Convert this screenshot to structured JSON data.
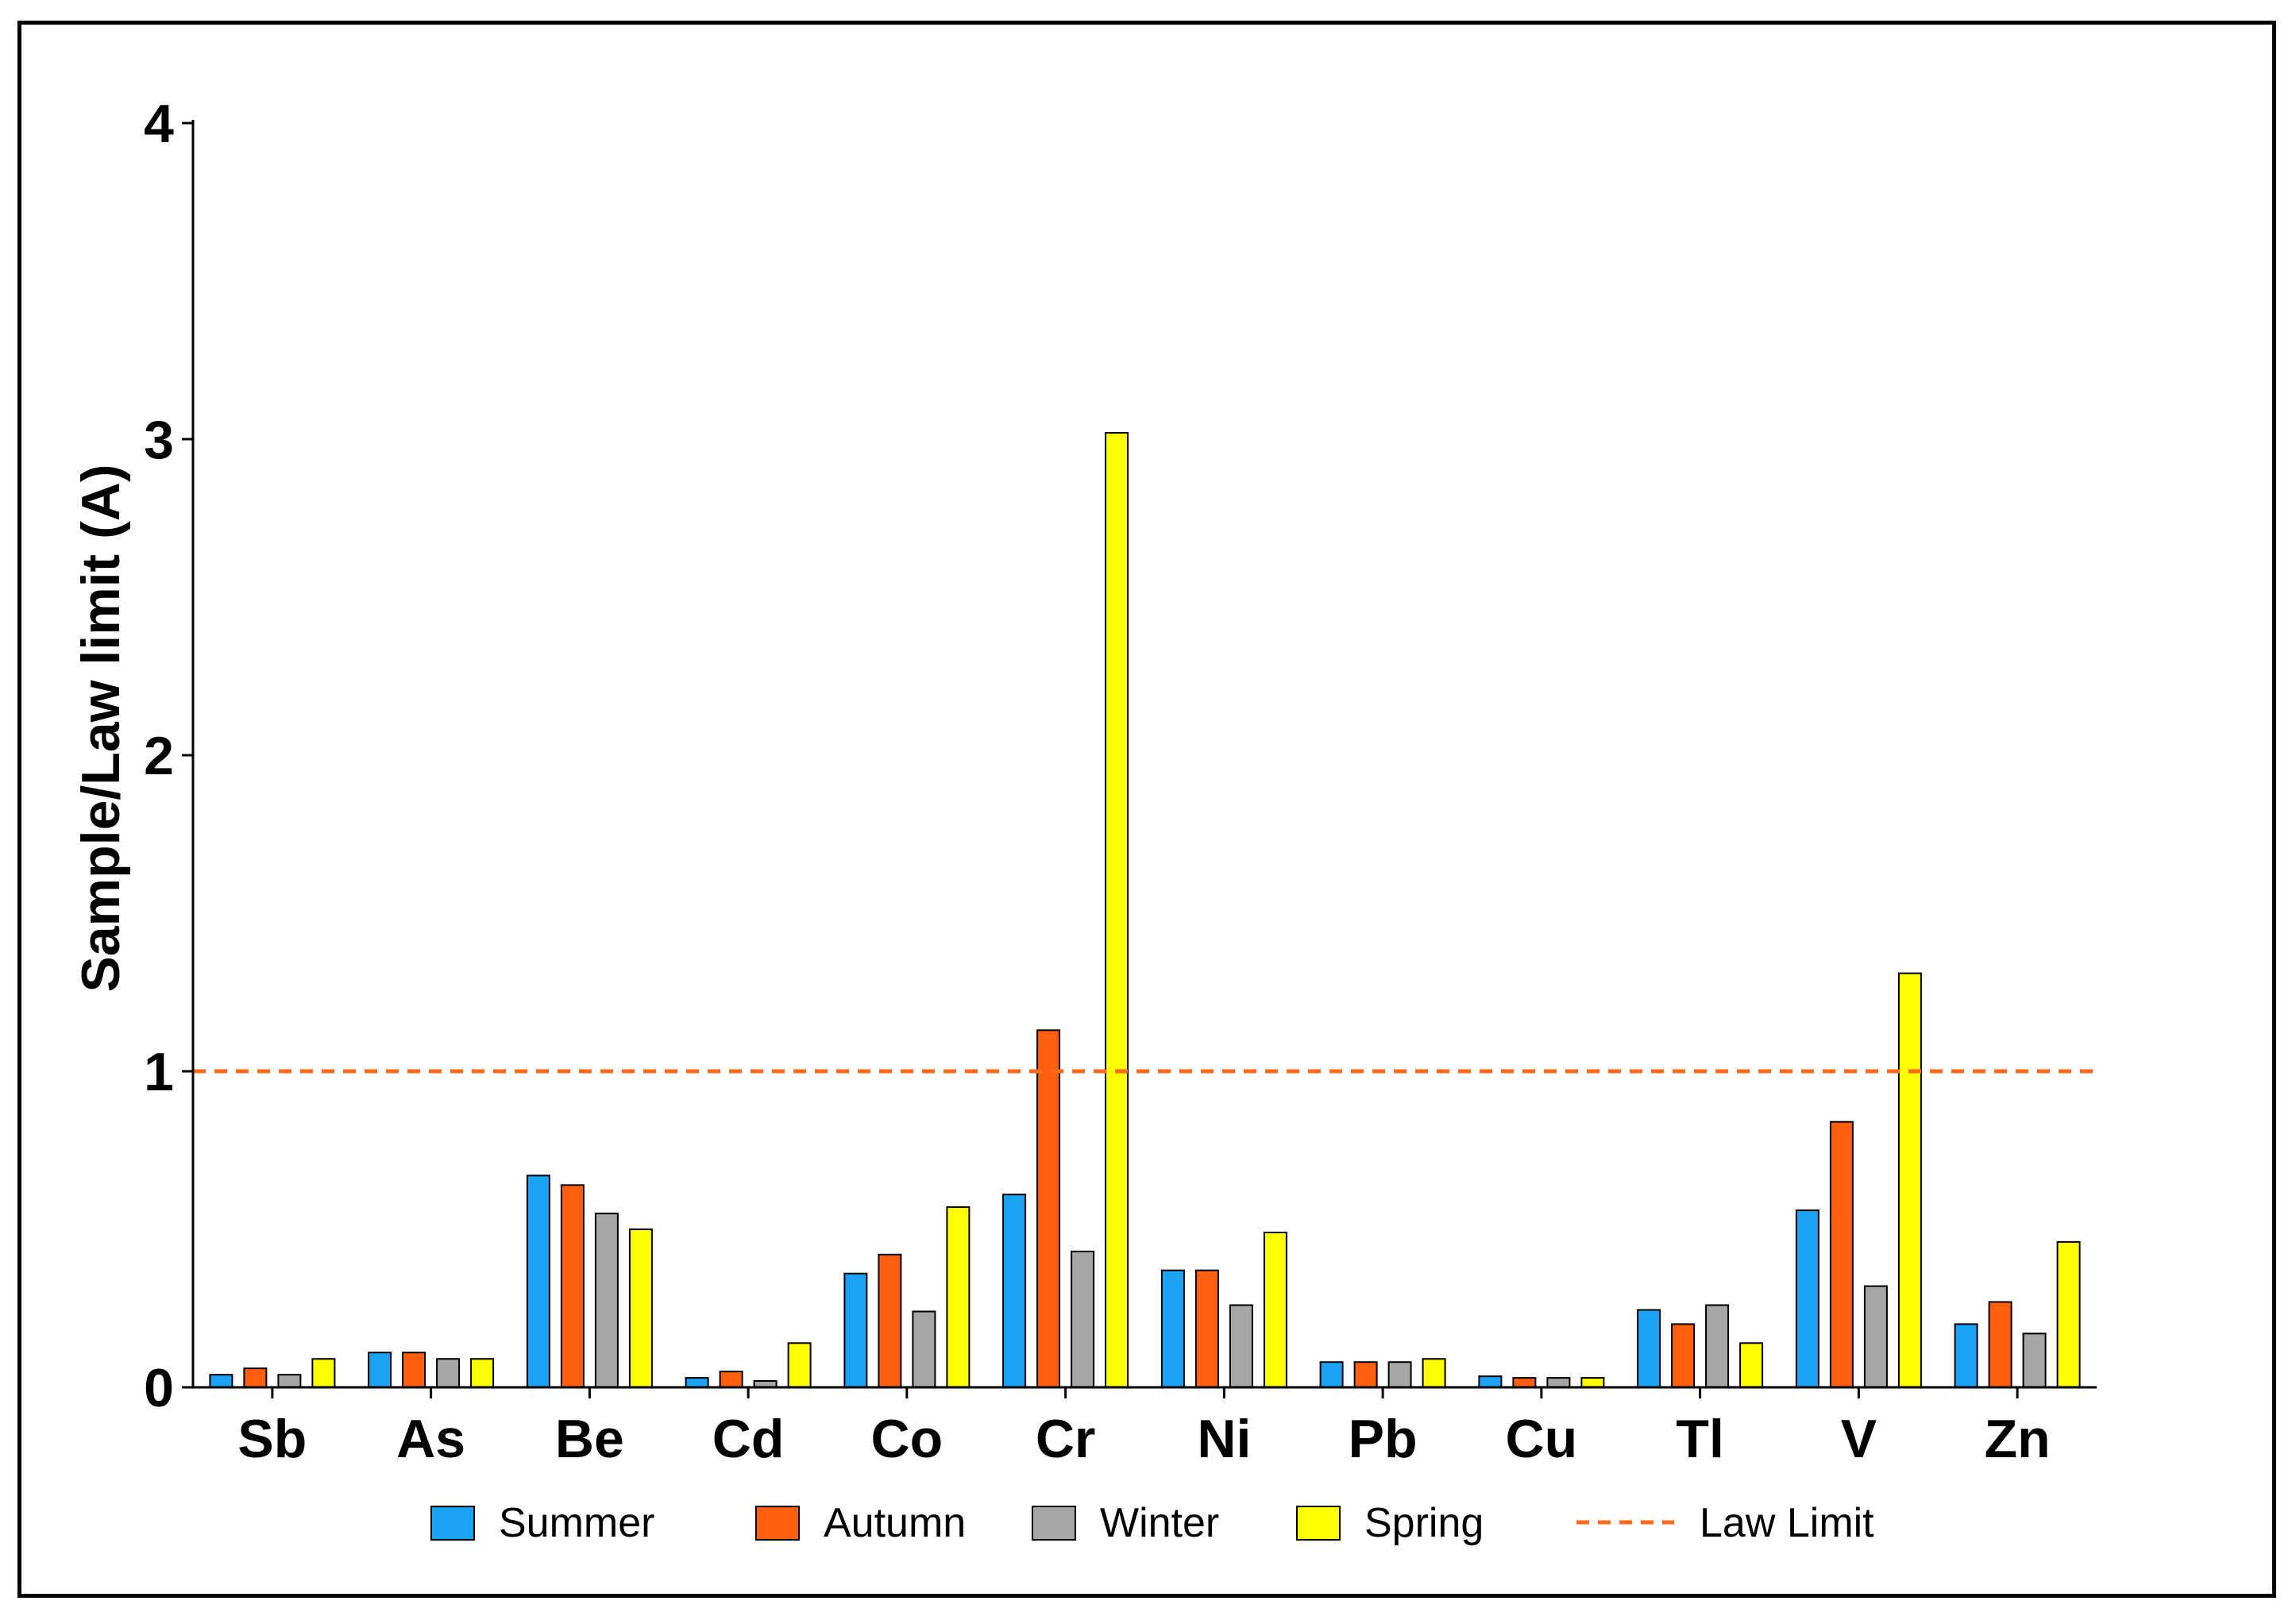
{
  "chart_data": {
    "type": "bar",
    "title": "",
    "xlabel": "",
    "ylabel": "Sample/Law limit (A)",
    "ylim": [
      0,
      4
    ],
    "yticks": [
      "0",
      "1",
      "2",
      "3",
      "4"
    ],
    "categories": [
      "Sb",
      "As",
      "Be",
      "Cd",
      "Co",
      "Cr",
      "Ni",
      "Pb",
      "Cu",
      "Tl",
      "V",
      "Zn"
    ],
    "series": [
      {
        "name": "Summer",
        "color": "#1aa3f5",
        "values": [
          0.04,
          0.11,
          0.67,
          0.03,
          0.36,
          0.61,
          0.37,
          0.08,
          0.035,
          0.245,
          0.56,
          0.2
        ]
      },
      {
        "name": "Autumn",
        "color": "#ff5f0f",
        "values": [
          0.06,
          0.11,
          0.64,
          0.05,
          0.42,
          1.13,
          0.37,
          0.08,
          0.03,
          0.2,
          0.84,
          0.27
        ]
      },
      {
        "name": "Winter",
        "color": "#a6a6a6",
        "values": [
          0.04,
          0.09,
          0.55,
          0.02,
          0.24,
          0.43,
          0.26,
          0.08,
          0.03,
          0.26,
          0.32,
          0.17
        ]
      },
      {
        "name": "Spring",
        "color": "#ffff00",
        "values": [
          0.09,
          0.09,
          0.5,
          0.14,
          0.57,
          3.02,
          0.49,
          0.09,
          0.03,
          0.14,
          1.31,
          0.46
        ]
      }
    ],
    "reference_line": {
      "name": "Law Limit",
      "value": 1,
      "color": "#ff6a1a",
      "style": "dashed"
    },
    "legend": [
      "Summer",
      "Autumn",
      "Winter",
      "Spring",
      "Law Limit"
    ],
    "legend_position": "bottom"
  }
}
